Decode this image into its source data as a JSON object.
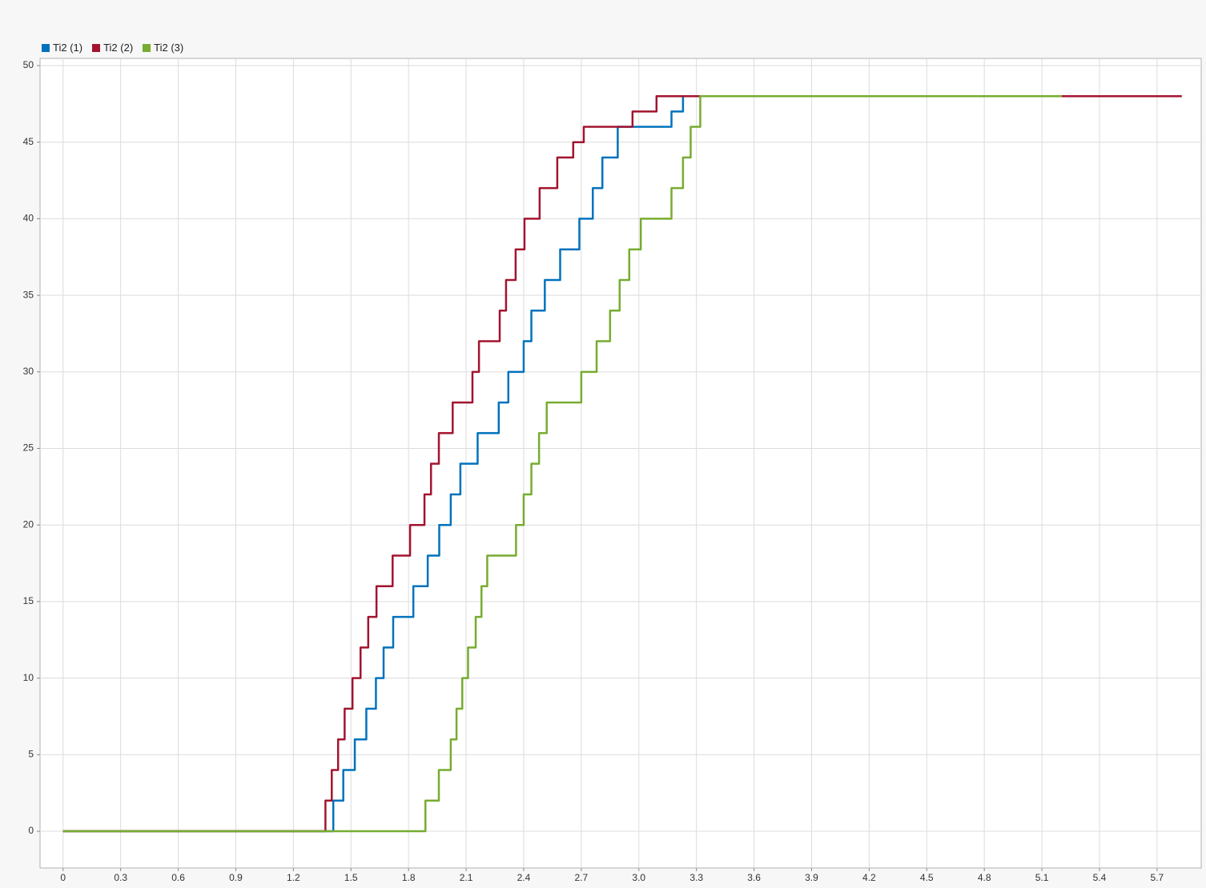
{
  "chart_data": {
    "type": "line",
    "series": [
      {
        "name": "Ti2 (1)",
        "color": "#0072bd",
        "x": [
          0,
          1.408,
          1.408,
          1.46,
          1.46,
          1.52,
          1.52,
          1.58,
          1.58,
          1.63,
          1.63,
          1.67,
          1.67,
          1.72,
          1.72,
          1.825,
          1.825,
          1.9,
          1.9,
          1.96,
          1.96,
          2.02,
          2.02,
          2.07,
          2.07,
          2.16,
          2.16,
          2.27,
          2.27,
          2.32,
          2.32,
          2.4,
          2.4,
          2.44,
          2.44,
          2.51,
          2.51,
          2.59,
          2.59,
          2.69,
          2.69,
          2.76,
          2.76,
          2.81,
          2.81,
          2.89,
          2.89,
          3.17,
          3.17,
          3.23,
          3.23,
          5.3
        ],
        "values": [
          0,
          0,
          2,
          2,
          4,
          4,
          6,
          6,
          8,
          8,
          10,
          10,
          12,
          12,
          14,
          14,
          16,
          16,
          18,
          18,
          20,
          20,
          22,
          22,
          24,
          24,
          26,
          26,
          28,
          28,
          30,
          30,
          32,
          32,
          34,
          34,
          36,
          36,
          38,
          38,
          40,
          40,
          42,
          42,
          44,
          44,
          46,
          46,
          47,
          47,
          48,
          48
        ]
      },
      {
        "name": "Ti2 (2)",
        "color": "#a2142f",
        "x": [
          0,
          1.367,
          1.367,
          1.4,
          1.4,
          1.433,
          1.433,
          1.467,
          1.467,
          1.508,
          1.508,
          1.55,
          1.55,
          1.59,
          1.59,
          1.633,
          1.633,
          1.717,
          1.717,
          1.808,
          1.808,
          1.883,
          1.883,
          1.917,
          1.917,
          1.958,
          1.958,
          2.03,
          2.03,
          2.133,
          2.133,
          2.167,
          2.167,
          2.275,
          2.275,
          2.308,
          2.308,
          2.358,
          2.358,
          2.404,
          2.404,
          2.483,
          2.483,
          2.575,
          2.575,
          2.658,
          2.658,
          2.713,
          2.713,
          2.967,
          2.967,
          3.092,
          3.092,
          5.829
        ],
        "values": [
          0,
          0,
          2,
          2,
          4,
          4,
          6,
          6,
          8,
          8,
          10,
          10,
          12,
          12,
          14,
          14,
          16,
          16,
          18,
          18,
          20,
          20,
          22,
          22,
          24,
          24,
          26,
          26,
          28,
          28,
          30,
          30,
          32,
          32,
          34,
          34,
          36,
          36,
          38,
          38,
          40,
          40,
          42,
          42,
          44,
          44,
          45,
          45,
          46,
          46,
          47,
          47,
          48,
          48
        ]
      },
      {
        "name": "Ti2 (3)",
        "color": "#77ac30",
        "x": [
          0,
          1.888,
          1.888,
          1.958,
          1.958,
          2.02,
          2.02,
          2.05,
          2.05,
          2.08,
          2.08,
          2.11,
          2.11,
          2.15,
          2.15,
          2.18,
          2.18,
          2.21,
          2.21,
          2.36,
          2.36,
          2.4,
          2.4,
          2.44,
          2.44,
          2.48,
          2.48,
          2.52,
          2.52,
          2.7,
          2.7,
          2.78,
          2.78,
          2.85,
          2.85,
          2.9,
          2.9,
          2.95,
          2.95,
          3.01,
          3.01,
          3.17,
          3.17,
          3.23,
          3.23,
          3.27,
          3.27,
          3.32,
          3.32,
          5.204
        ],
        "values": [
          0,
          0,
          2,
          2,
          4,
          4,
          6,
          6,
          8,
          8,
          10,
          10,
          12,
          12,
          14,
          14,
          16,
          16,
          18,
          18,
          20,
          20,
          22,
          22,
          24,
          24,
          26,
          26,
          28,
          28,
          30,
          30,
          32,
          32,
          34,
          34,
          36,
          36,
          38,
          38,
          40,
          40,
          42,
          42,
          44,
          44,
          46,
          46,
          48,
          48
        ]
      }
    ],
    "xlim": [
      -0.12,
      5.93
    ],
    "xticks": [
      0,
      0.3,
      0.6,
      0.9,
      1.2,
      1.5,
      1.8,
      2.1,
      2.4,
      2.7,
      {
        "value": 3,
        "label": "3.0"
      },
      3.3,
      3.6,
      3.9,
      4.2,
      4.5,
      4.8,
      5.1,
      5.4,
      5.7
    ],
    "ylim": [
      -2.4,
      50.47
    ],
    "yticks": [
      0,
      5,
      10,
      15,
      20,
      25,
      30,
      35,
      40,
      45,
      50
    ],
    "grid": true,
    "legend": "top-left"
  }
}
